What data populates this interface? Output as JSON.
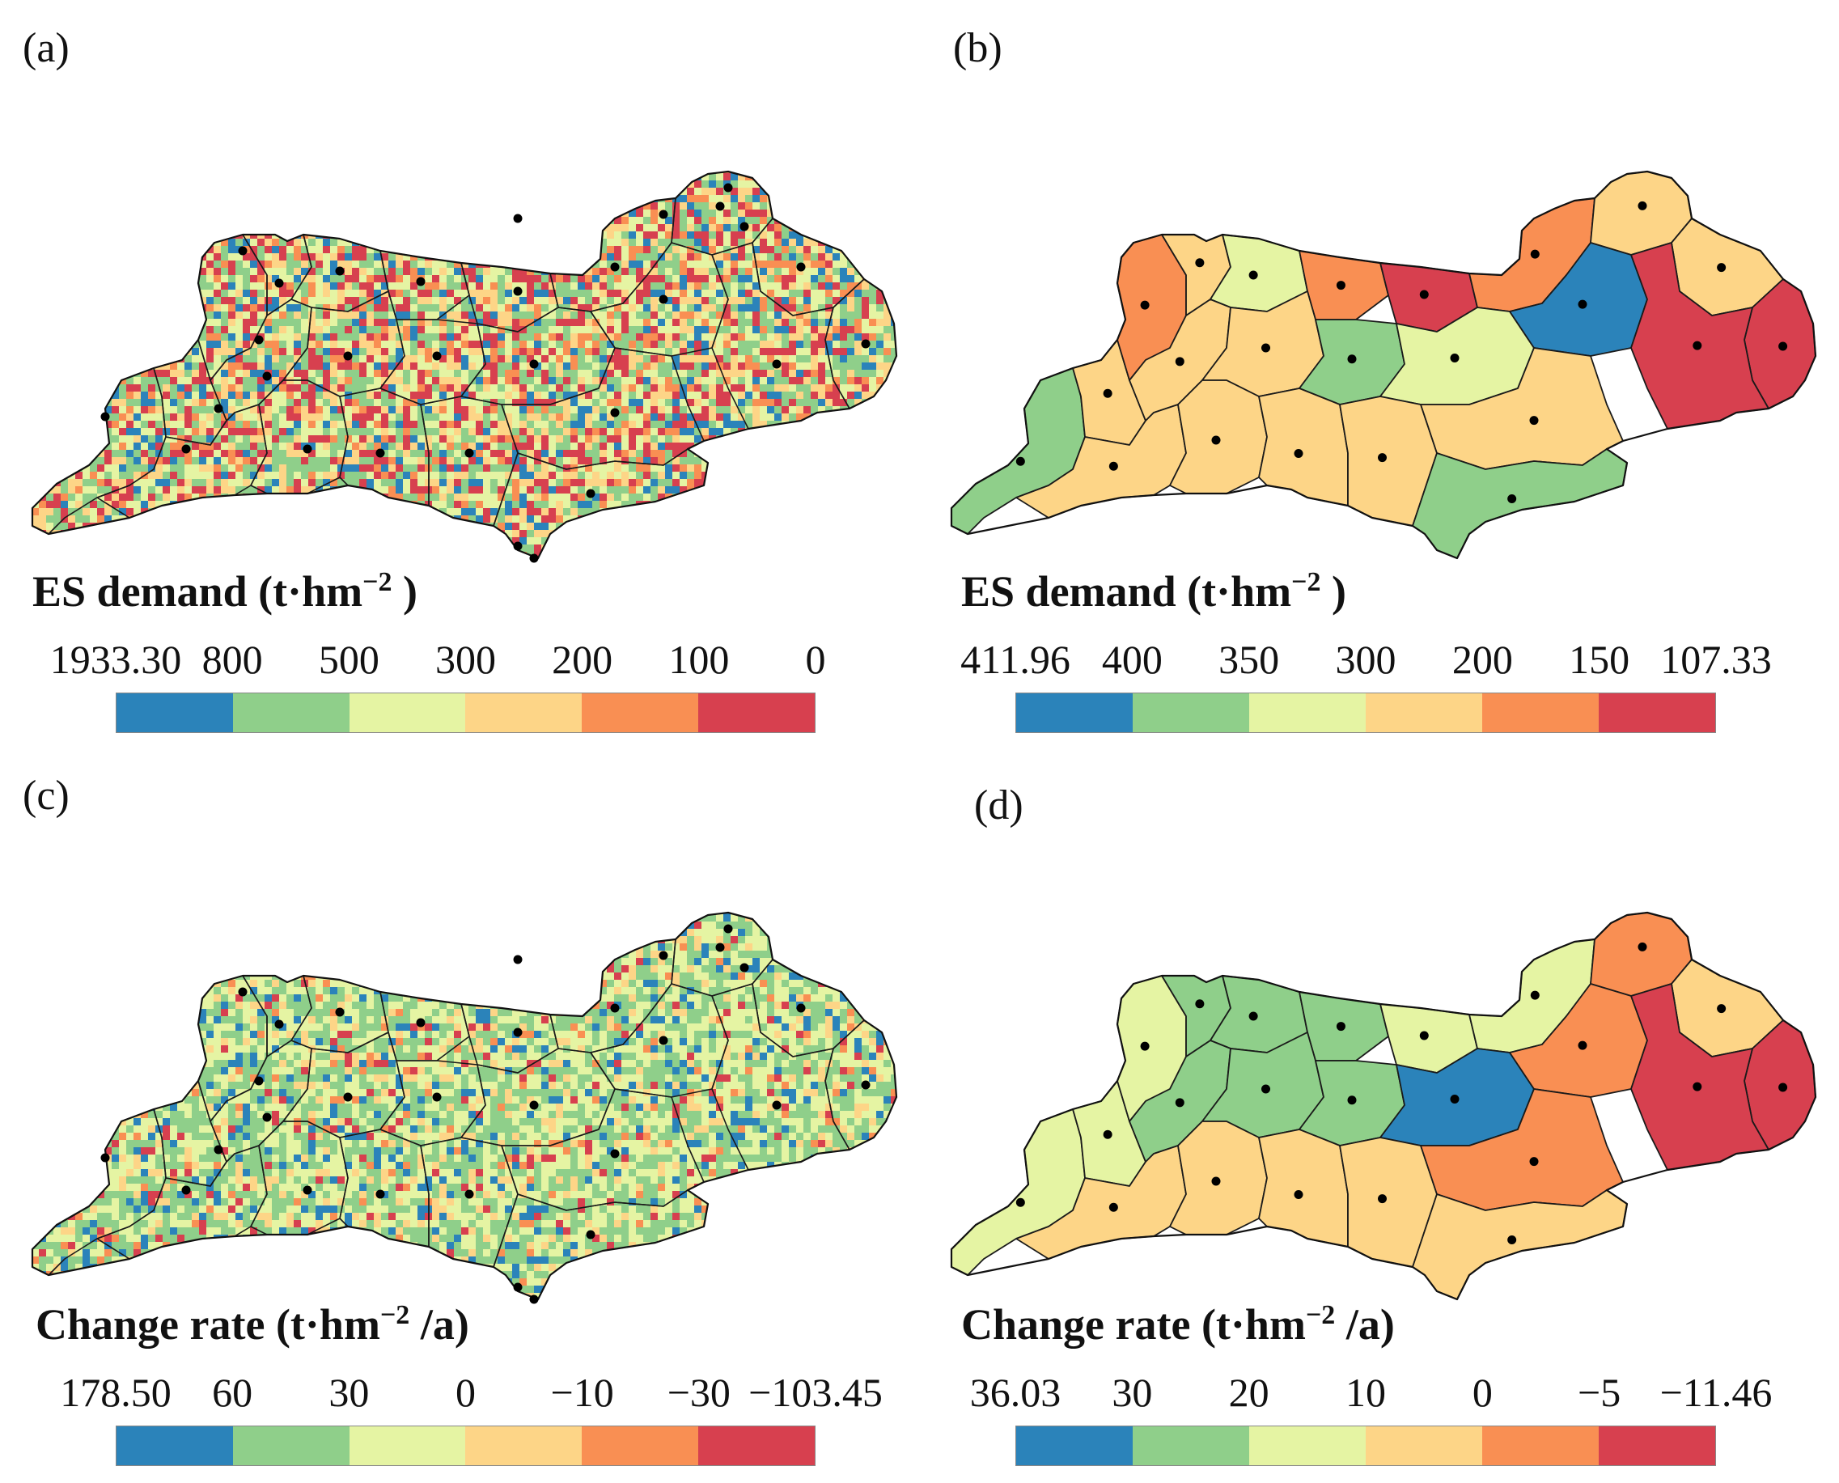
{
  "palette": [
    "#2b83ba",
    "#8fcf8a",
    "#e5f4a3",
    "#fdd587",
    "#f98f53",
    "#d7404f"
  ],
  "panels": [
    {
      "id": "a",
      "label": "(a)",
      "kind": "raster",
      "legend_title_main": "ES demand (t·hm",
      "legend_title_sup": "−2",
      "legend_title_tail": " )",
      "ticks": [
        "1933.30",
        "800",
        "500",
        "300",
        "200",
        "100",
        "0"
      ]
    },
    {
      "id": "b",
      "label": "(b)",
      "kind": "county",
      "legend_title_main": "ES demand (t·hm",
      "legend_title_sup": "−2",
      "legend_title_tail": " )",
      "ticks": [
        "411.96",
        "400",
        "350",
        "300",
        "200",
        "150",
        "107.33"
      ]
    },
    {
      "id": "c",
      "label": "(c)",
      "kind": "raster",
      "legend_title_main": "Change rate (t·hm",
      "legend_title_sup": "−2",
      "legend_title_tail": " /a)",
      "ticks": [
        "178.50",
        "60",
        "30",
        "0",
        "−10",
        "−30",
        "−103.45"
      ]
    },
    {
      "id": "d",
      "label": "(d)",
      "kind": "county",
      "legend_title_main": "Change rate (t·hm",
      "legend_title_sup": "−2",
      "legend_title_tail": " /a)",
      "ticks": [
        "36.03",
        "30",
        "20",
        "10",
        "0",
        "−5",
        "−11.46"
      ]
    }
  ]
}
